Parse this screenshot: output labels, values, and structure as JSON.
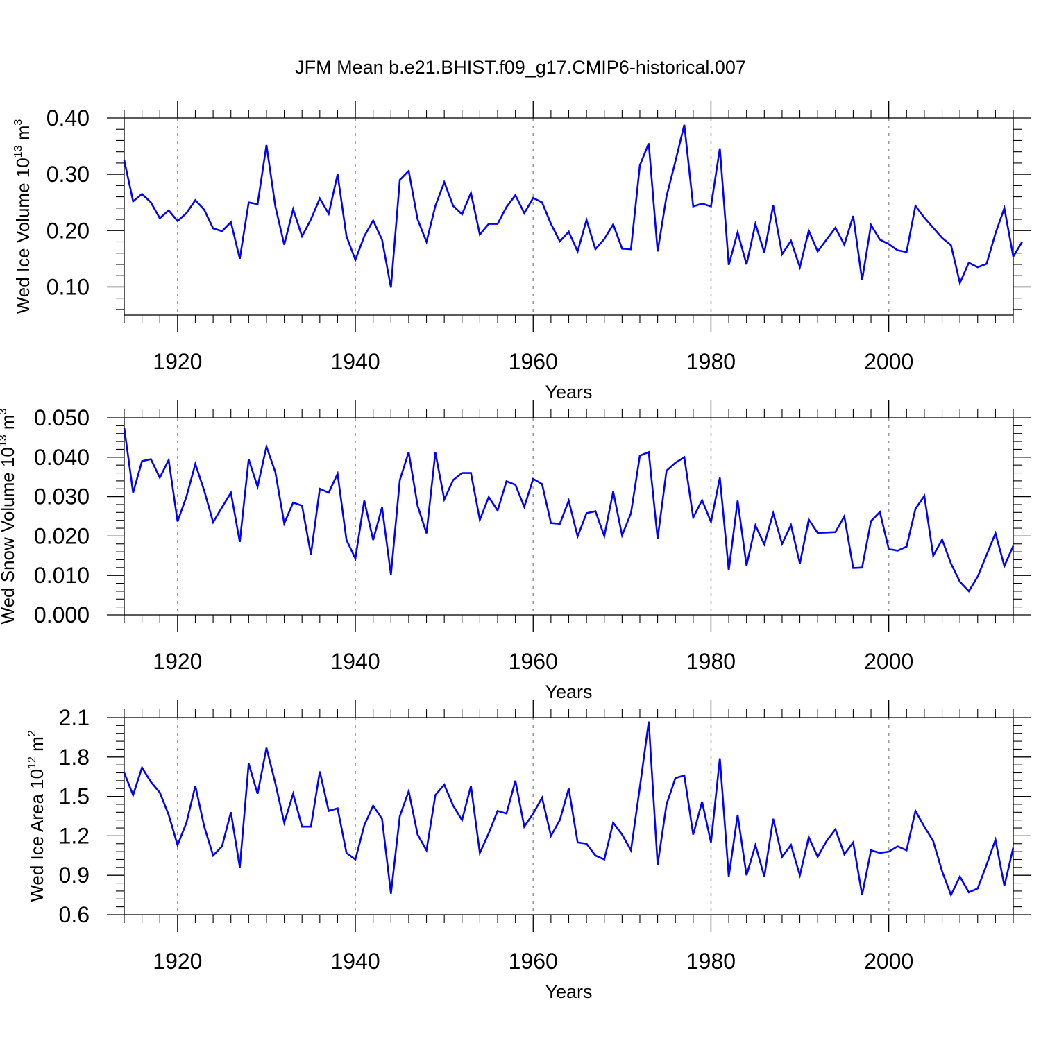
{
  "title": "JFM Mean b.e21.BHIST.f09_g17.CMIP6-historical.007",
  "colors": {
    "line": "#0000ff",
    "axis": "#000000",
    "grid": "#9a9a9a"
  },
  "chart_data": [
    {
      "type": "line",
      "name": "wed-ice-volume",
      "ylabel_text": "Wed Ice Volume 10",
      "ylabel_exp": "13",
      "ylabel_unit": " m",
      "ylabel_unit_exp": "3",
      "xlabel": "Years",
      "xlim": [
        1914,
        2014
      ],
      "ylim": [
        0.05,
        0.4
      ],
      "xticks": [
        1920,
        1940,
        1960,
        1980,
        2000
      ],
      "xtick_labels": [
        "1920",
        "1940",
        "1960",
        "1980",
        "2000"
      ],
      "yticks": [
        0.1,
        0.2,
        0.3,
        0.4
      ],
      "ytick_labels": [
        "0.10",
        "0.20",
        "0.30",
        "0.40"
      ],
      "x_start": 1914,
      "values": [
        0.325,
        0.252,
        0.265,
        0.25,
        0.222,
        0.236,
        0.217,
        0.231,
        0.254,
        0.237,
        0.204,
        0.199,
        0.215,
        0.15,
        0.25,
        0.247,
        0.352,
        0.243,
        0.175,
        0.238,
        0.19,
        0.22,
        0.257,
        0.23,
        0.3,
        0.19,
        0.148,
        0.19,
        0.218,
        0.184,
        0.099,
        0.29,
        0.306,
        0.22,
        0.18,
        0.244,
        0.286,
        0.244,
        0.229,
        0.267,
        0.193,
        0.212,
        0.212,
        0.242,
        0.263,
        0.231,
        0.258,
        0.25,
        0.212,
        0.181,
        0.198,
        0.163,
        0.219,
        0.167,
        0.185,
        0.211,
        0.168,
        0.167,
        0.316,
        0.355,
        0.163,
        0.261,
        0.323,
        0.388,
        0.243,
        0.248,
        0.243,
        0.346,
        0.139,
        0.197,
        0.14,
        0.212,
        0.161,
        0.245,
        0.158,
        0.182,
        0.135,
        0.2,
        0.163,
        0.184,
        0.205,
        0.175,
        0.226,
        0.112,
        0.21,
        0.184,
        0.176,
        0.165,
        0.162,
        0.244,
        0.223,
        0.205,
        0.187,
        0.174,
        0.107,
        0.143,
        0.135,
        0.141,
        0.195,
        0.24,
        0.154,
        0.18
      ]
    },
    {
      "type": "line",
      "name": "wed-snow-volume",
      "ylabel_text": "Wed Snow Volume 10",
      "ylabel_exp": "13",
      "ylabel_unit": " m",
      "ylabel_unit_exp": "3",
      "xlabel": "Years",
      "xlim": [
        1914,
        2014
      ],
      "ylim": [
        0.0,
        0.05
      ],
      "xticks": [
        1920,
        1940,
        1960,
        1980,
        2000
      ],
      "xtick_labels": [
        "1920",
        "1940",
        "1960",
        "1980",
        "2000"
      ],
      "yticks": [
        0.0,
        0.01,
        0.02,
        0.03,
        0.04,
        0.05
      ],
      "ytick_labels": [
        "0.000",
        "0.010",
        "0.020",
        "0.030",
        "0.040",
        "0.050"
      ],
      "x_start": 1914,
      "values": [
        0.0475,
        0.031,
        0.039,
        0.0395,
        0.0348,
        0.0393,
        0.0237,
        0.03,
        0.0383,
        0.0315,
        0.0235,
        0.0273,
        0.031,
        0.0185,
        0.0395,
        0.0325,
        0.0427,
        0.0362,
        0.0232,
        0.0285,
        0.0277,
        0.0153,
        0.032,
        0.031,
        0.0358,
        0.019,
        0.0143,
        0.029,
        0.019,
        0.0273,
        0.0102,
        0.0342,
        0.0413,
        0.0277,
        0.0207,
        0.0412,
        0.0293,
        0.0342,
        0.036,
        0.036,
        0.0241,
        0.0299,
        0.0265,
        0.0339,
        0.033,
        0.0274,
        0.0345,
        0.0332,
        0.0233,
        0.0231,
        0.029,
        0.0199,
        0.0258,
        0.0263,
        0.02,
        0.0313,
        0.0202,
        0.0258,
        0.0404,
        0.0413,
        0.0194,
        0.0366,
        0.0386,
        0.04,
        0.0247,
        0.0291,
        0.0236,
        0.0348,
        0.0113,
        0.029,
        0.0125,
        0.0227,
        0.0179,
        0.0258,
        0.018,
        0.0228,
        0.013,
        0.0242,
        0.0208,
        0.0209,
        0.021,
        0.025,
        0.0119,
        0.012,
        0.0238,
        0.0261,
        0.0167,
        0.0163,
        0.0173,
        0.0269,
        0.0302,
        0.015,
        0.0191,
        0.013,
        0.0084,
        0.006,
        0.0097,
        0.0152,
        0.0207,
        0.0124,
        0.0175
      ]
    },
    {
      "type": "line",
      "name": "wed-ice-area",
      "ylabel_text": "Wed Ice Area 10",
      "ylabel_exp": "12",
      "ylabel_unit": " m",
      "ylabel_unit_exp": "2",
      "xlabel": "Years",
      "xlim": [
        1914,
        2014
      ],
      "ylim": [
        0.6,
        2.1
      ],
      "xticks": [
        1920,
        1940,
        1960,
        1980,
        2000
      ],
      "xtick_labels": [
        "1920",
        "1940",
        "1960",
        "1980",
        "2000"
      ],
      "yticks": [
        0.6,
        0.9,
        1.2,
        1.5,
        1.8,
        2.1
      ],
      "ytick_labels": [
        "0.6",
        "0.9",
        "1.2",
        "1.5",
        "1.8",
        "2.1"
      ],
      "x_start": 1914,
      "values": [
        1.68,
        1.51,
        1.72,
        1.61,
        1.53,
        1.36,
        1.13,
        1.3,
        1.58,
        1.27,
        1.05,
        1.12,
        1.38,
        0.96,
        1.75,
        1.52,
        1.87,
        1.6,
        1.3,
        1.52,
        1.27,
        1.27,
        1.69,
        1.39,
        1.41,
        1.07,
        1.02,
        1.28,
        1.43,
        1.33,
        0.76,
        1.35,
        1.54,
        1.21,
        1.09,
        1.51,
        1.59,
        1.43,
        1.32,
        1.58,
        1.07,
        1.22,
        1.39,
        1.37,
        1.62,
        1.27,
        1.37,
        1.49,
        1.2,
        1.32,
        1.56,
        1.15,
        1.14,
        1.05,
        1.02,
        1.3,
        1.21,
        1.09,
        1.57,
        2.07,
        0.98,
        1.44,
        1.64,
        1.66,
        1.21,
        1.46,
        1.15,
        1.79,
        0.89,
        1.36,
        0.9,
        1.13,
        0.89,
        1.33,
        1.04,
        1.13,
        0.9,
        1.19,
        1.04,
        1.16,
        1.25,
        1.06,
        1.15,
        0.75,
        1.09,
        1.07,
        1.08,
        1.12,
        1.09,
        1.39,
        1.27,
        1.16,
        0.93,
        0.75,
        0.89,
        0.77,
        0.8,
        0.98,
        1.17,
        0.82,
        1.11
      ]
    }
  ]
}
